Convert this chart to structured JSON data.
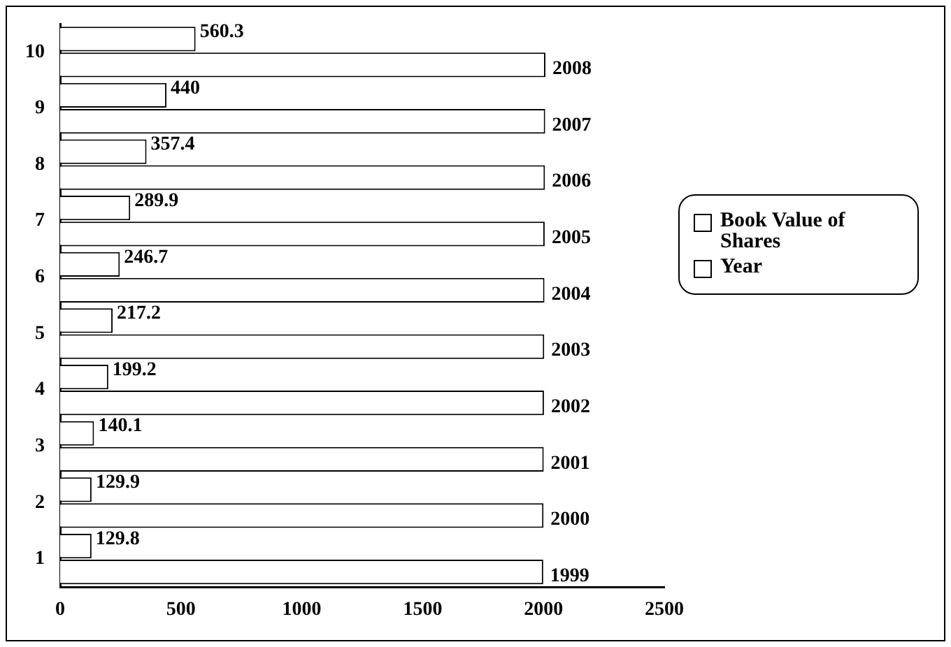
{
  "chart_data": {
    "type": "bar",
    "orientation": "horizontal",
    "categories": [
      "10",
      "9",
      "8",
      "7",
      "6",
      "5",
      "4",
      "3",
      "2",
      "1"
    ],
    "series": [
      {
        "name": "Book Value of Shares",
        "color": "#ffffff",
        "values": [
          560.3,
          440,
          357.4,
          289.9,
          246.7,
          217.2,
          199.2,
          140.1,
          129.9,
          129.8
        ]
      },
      {
        "name": "Year",
        "color": "#ffffff",
        "values": [
          2008,
          2007,
          2006,
          2005,
          2004,
          2003,
          2002,
          2001,
          2000,
          1999
        ]
      }
    ],
    "xlim": [
      0,
      2500
    ],
    "xticks": [
      0,
      500,
      1000,
      1500,
      2000,
      2500
    ],
    "grid": false,
    "legend": "right",
    "data_labels": true
  }
}
